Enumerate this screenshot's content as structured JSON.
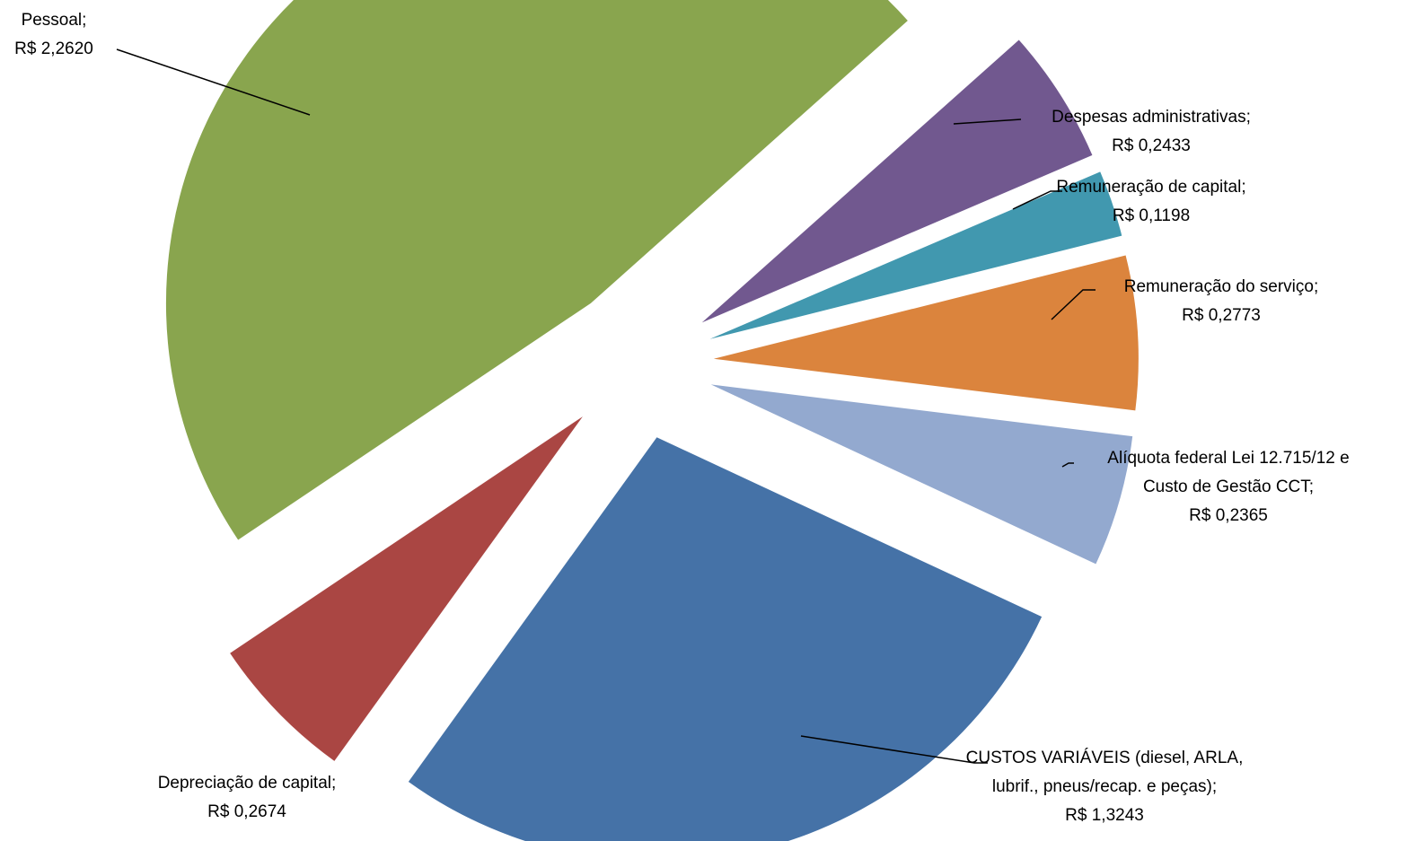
{
  "chart_data": {
    "type": "pie",
    "exploded": true,
    "title": "",
    "slices": [
      {
        "key": "custos-variaveis",
        "label_lines": [
          "CUSTOS VARIÁVEIS (diesel, ARLA,",
          "lubrif., pneus/recap. e peças);",
          "R$ 1,3243"
        ],
        "value": 1.3243,
        "color": "#4572A7"
      },
      {
        "key": "depreciacao-capital",
        "label_lines": [
          "Depreciação de capital;",
          "R$ 0,2674"
        ],
        "value": 0.2674,
        "color": "#AA4643"
      },
      {
        "key": "pessoal",
        "label_lines": [
          "Pessoal;",
          "R$ 2,2620"
        ],
        "value": 2.262,
        "color": "#89A54E"
      },
      {
        "key": "despesas-administrativas",
        "label_lines": [
          "Despesas administrativas;",
          "R$ 0,2433"
        ],
        "value": 0.2433,
        "color": "#71588F"
      },
      {
        "key": "remuneracao-capital",
        "label_lines": [
          "Remuneração de capital;",
          "R$ 0,1198"
        ],
        "value": 0.1198,
        "color": "#4198AF"
      },
      {
        "key": "remuneracao-servico",
        "label_lines": [
          "Remuneração do serviço;",
          "R$ 0,2773"
        ],
        "value": 0.2773,
        "color": "#DB843D"
      },
      {
        "key": "aliquota-federal",
        "label_lines": [
          "Alíquota federal Lei 12.715/12 e",
          "Custo de Gestão CCT;",
          "R$ 0,2365"
        ],
        "value": 0.2365,
        "color": "#93A9CF"
      }
    ]
  }
}
